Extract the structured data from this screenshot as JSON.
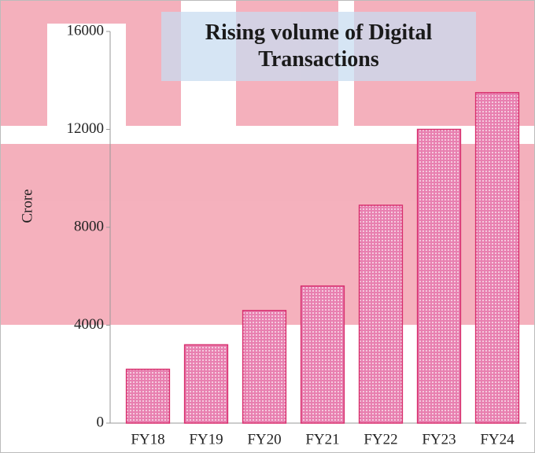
{
  "chart_data": {
    "type": "bar",
    "title": "Rising volume of Digital Transactions",
    "ylabel": "Crore",
    "categories": [
      "FY18",
      "FY19",
      "FY20",
      "FY21",
      "FY22",
      "FY23",
      "FY24"
    ],
    "values": [
      2200,
      3200,
      4600,
      5600,
      8900,
      12000,
      13500
    ],
    "color": "#d8306e",
    "ylim": [
      0,
      16000
    ],
    "yticks": [
      0,
      4000,
      8000,
      12000,
      16000
    ],
    "grid": false
  }
}
